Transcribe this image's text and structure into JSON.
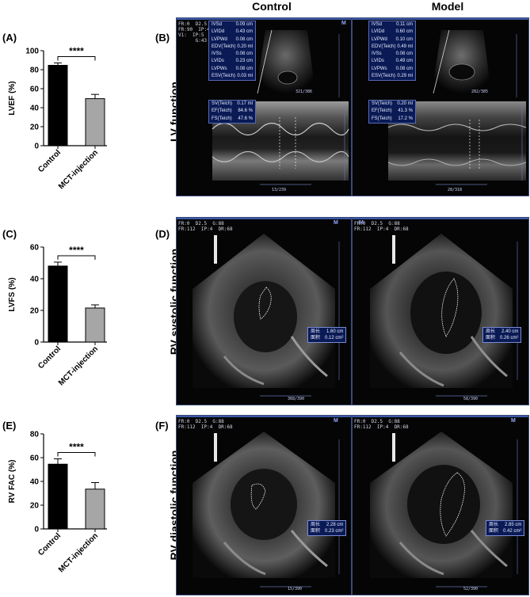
{
  "columns": {
    "control": "Control",
    "model": "Model"
  },
  "panels": {
    "A": "(A)",
    "B": "(B)",
    "C": "(C)",
    "D": "(D)",
    "E": "(E)",
    "F": "(F)"
  },
  "row_labels": {
    "lv": "LV function",
    "rv_sys": "RV systolic function",
    "rv_dia": "RV diastolic function"
  },
  "chart_data": [
    {
      "type": "bar",
      "panel": "A",
      "categories": [
        "Control",
        "MCT-injection"
      ],
      "values": [
        84.6,
        49.5
      ],
      "errors": [
        2.5,
        4.5
      ],
      "ylabel": "LVEF (%)",
      "ylim": [
        0,
        100
      ],
      "yticks": [
        "0",
        "20",
        "40",
        "60",
        "80",
        "100"
      ],
      "significance": "****",
      "colors": [
        "#000000",
        "#a6a6a6"
      ]
    },
    {
      "type": "bar",
      "panel": "C",
      "categories": [
        "Control",
        "MCT-injection"
      ],
      "values": [
        48,
        21.5
      ],
      "errors": [
        2.5,
        2.0
      ],
      "ylabel": "LVFS (%)",
      "ylim": [
        0,
        60
      ],
      "yticks": [
        "0",
        "20",
        "40",
        "60"
      ],
      "significance": "****",
      "colors": [
        "#000000",
        "#a6a6a6"
      ]
    },
    {
      "type": "bar",
      "panel": "E",
      "categories": [
        "Control",
        "MCT-injection"
      ],
      "values": [
        54.5,
        33.5
      ],
      "errors": [
        4.5,
        5.5
      ],
      "ylabel": "RV FAC (%)",
      "ylim": [
        0,
        80
      ],
      "yticks": [
        "0",
        "20",
        "40",
        "60",
        "80"
      ],
      "significance": "****",
      "colors": [
        "#000000",
        "#a6a6a6"
      ]
    }
  ],
  "ultrasound": {
    "lv_control": {
      "rows": [
        {
          "k": "IVSd",
          "v": "0.09 cm"
        },
        {
          "k": "LVIDd",
          "v": "0.43 cm"
        },
        {
          "k": "LVPWd",
          "v": "0.08 cm"
        },
        {
          "k": "EDV(Teich)",
          "v": "0.20 ml"
        },
        {
          "k": "IVSs",
          "v": "0.08 cm"
        },
        {
          "k": "LVIDs",
          "v": "0.23 cm"
        },
        {
          "k": "LVPWs",
          "v": "0.08 cm"
        },
        {
          "k": "ESV(Teich)",
          "v": "0.03 ml"
        },
        {
          "k": "SV(Teich)",
          "v": "0.17 ml"
        },
        {
          "k": "EF(Teich)",
          "v": "84.6 %"
        },
        {
          "k": "FS(Teich)",
          "v": "47.6 %"
        }
      ],
      "params": "FR:0  D2.5  G:68\nFR:90  IP:4  DR:68\nV1:  IP:5  DR:68\n      G:43",
      "frame_top": "321/386",
      "frame_bottom": "13/239"
    },
    "lv_model": {
      "rows": [
        {
          "k": "IVSd",
          "v": "0.11 cm"
        },
        {
          "k": "LVIDd",
          "v": "0.60 cm"
        },
        {
          "k": "LVPWd",
          "v": "0.10 cm"
        },
        {
          "k": "EDV(Teich)",
          "v": "0.49 ml"
        },
        {
          "k": "IVSs",
          "v": "0.08 cm"
        },
        {
          "k": "LVIDs",
          "v": "0.49 cm"
        },
        {
          "k": "LVPWs",
          "v": "0.08 cm"
        },
        {
          "k": "ESV(Teich)",
          "v": "0.29 ml"
        },
        {
          "k": "SV(Teich)",
          "v": "0.20 ml"
        },
        {
          "k": "EF(Teich)",
          "v": "41.3 %"
        },
        {
          "k": "FS(Teich)",
          "v": "17.2 %"
        }
      ],
      "frame_top": "282/385",
      "frame_bottom": "28/318"
    },
    "rv_sys_control": {
      "params": "FR:0  D2.5  G:88\nFR:112  IP:4  DR:68",
      "perimeter_label": "周长",
      "perimeter": "1.60 cm",
      "area_label": "面积",
      "area": "0.12 cm²",
      "frame": "368/390"
    },
    "rv_sys_model": {
      "params": "FR:0  D2.5  G:88\nFR:112  IP:4  DR:68",
      "perimeter_label": "周长",
      "perimeter": "2.40 cm",
      "area_label": "面积",
      "area": "0.26 cm²",
      "frame": "58/390"
    },
    "rv_dia_control": {
      "params": "FR:0  D2.5  G:88\nFR:112  IP:4  DR:68",
      "perimeter_label": "周长",
      "perimeter": "2.28 cm",
      "area_label": "面积",
      "area": "0.23 cm²",
      "frame": "15/390"
    },
    "rv_dia_model": {
      "params": "FR:0  D2.5  G:88\nFR:112  IP:4  DR:68",
      "perimeter_label": "周长",
      "perimeter": "2.85 cm",
      "area_label": "面积",
      "area": "0.42 cm²",
      "frame": "52/390"
    },
    "m_marker": "M"
  }
}
